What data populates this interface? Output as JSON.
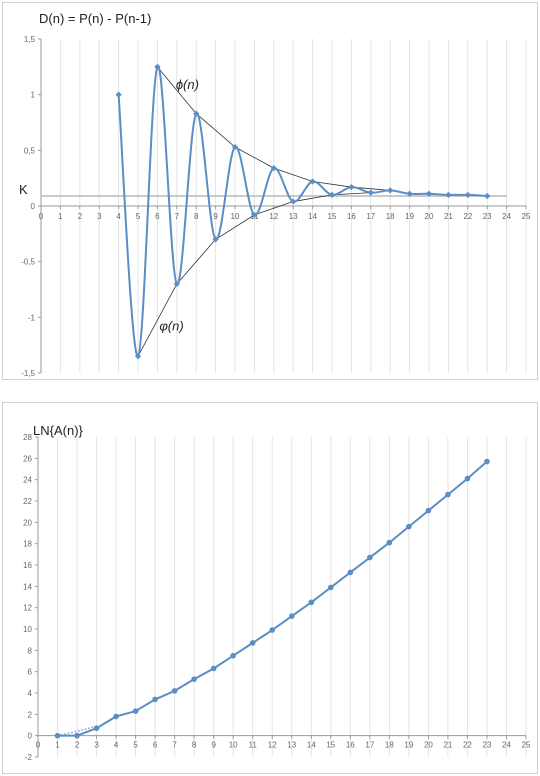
{
  "chart_data": [
    {
      "type": "line",
      "title": "D(n) = P(n) - P(n-1)",
      "xlim": [
        0,
        25
      ],
      "ylim": [
        -1.5,
        1.5
      ],
      "x_ticks": [
        "0",
        "1",
        "2",
        "3",
        "4",
        "5",
        "6",
        "7",
        "8",
        "9",
        "10",
        "11",
        "12",
        "13",
        "14",
        "15",
        "16",
        "17",
        "18",
        "19",
        "20",
        "21",
        "22",
        "23",
        "24",
        "25"
      ],
      "y_ticks": [
        "1,5",
        "1",
        "0,5",
        "0",
        "-0,5",
        "-1",
        "-1,5"
      ],
      "y_tick_values": [
        1.5,
        1,
        0.5,
        0,
        -0.5,
        -1,
        -1.5
      ],
      "grid": "vertical",
      "series": [
        {
          "x": [
            4,
            5,
            6,
            7,
            8,
            9,
            10,
            11,
            12,
            13,
            14,
            15,
            16,
            17,
            18,
            19,
            20,
            21,
            22,
            23
          ],
          "values": [
            1.0,
            -1.35,
            1.25,
            -0.7,
            0.83,
            -0.3,
            0.53,
            -0.08,
            0.34,
            0.04,
            0.22,
            0.1,
            0.17,
            0.12,
            0.14,
            0.11,
            0.11,
            0.1,
            0.1,
            0.09
          ]
        }
      ],
      "envelopes": {
        "upper": {
          "label": "ϕ(n)",
          "x": [
            6,
            8,
            10,
            12,
            14,
            16,
            18
          ],
          "values": [
            1.25,
            0.83,
            0.53,
            0.34,
            0.22,
            0.17,
            0.14
          ]
        },
        "lower": {
          "label": "φ(n)",
          "x": [
            5,
            7,
            9,
            11,
            13,
            15,
            17
          ],
          "values": [
            -1.35,
            -0.7,
            -0.3,
            -0.08,
            0.04,
            0.1,
            0.12
          ]
        }
      },
      "constant_line": {
        "label": "K",
        "value": 0.09
      },
      "colors": {
        "series": "#5b8ec4",
        "envelope": "#333333",
        "constant": "#b8b8b8",
        "grid": "#e4e4e4",
        "axis": "#9a9a9a"
      }
    },
    {
      "type": "line",
      "title": "LN{A(n)}",
      "xlim": [
        0,
        25
      ],
      "ylim": [
        -2,
        28
      ],
      "x_ticks": [
        "0",
        "1",
        "2",
        "3",
        "4",
        "5",
        "6",
        "7",
        "8",
        "9",
        "10",
        "11",
        "12",
        "13",
        "14",
        "15",
        "16",
        "17",
        "18",
        "19",
        "20",
        "21",
        "22",
        "23",
        "24",
        "25"
      ],
      "y_ticks": [
        "28",
        "26",
        "24",
        "22",
        "20",
        "18",
        "16",
        "14",
        "12",
        "10",
        "8",
        "6",
        "4",
        "2",
        "0",
        "-2"
      ],
      "y_tick_values": [
        28,
        26,
        24,
        22,
        20,
        18,
        16,
        14,
        12,
        10,
        8,
        6,
        4,
        2,
        0,
        -2
      ],
      "grid": "vertical",
      "series": [
        {
          "x": [
            1,
            2,
            3,
            4,
            5,
            6,
            7,
            8,
            9,
            10,
            11,
            12,
            13,
            14,
            15,
            16,
            17,
            18,
            19,
            20,
            21,
            22,
            23
          ],
          "values": [
            0.0,
            0.0,
            0.7,
            1.8,
            2.3,
            3.4,
            4.2,
            5.3,
            6.3,
            7.5,
            8.7,
            9.9,
            11.2,
            12.5,
            13.9,
            15.3,
            16.7,
            18.1,
            19.6,
            21.1,
            22.6,
            24.1,
            25.7
          ]
        }
      ],
      "trend": {
        "style": "dotted",
        "x": [
          1,
          2,
          3
        ],
        "values": [
          0.0,
          0.4,
          0.9
        ]
      },
      "colors": {
        "series": "#5b8ec4",
        "grid": "#e4e4e4",
        "axis": "#9a9a9a"
      }
    }
  ]
}
